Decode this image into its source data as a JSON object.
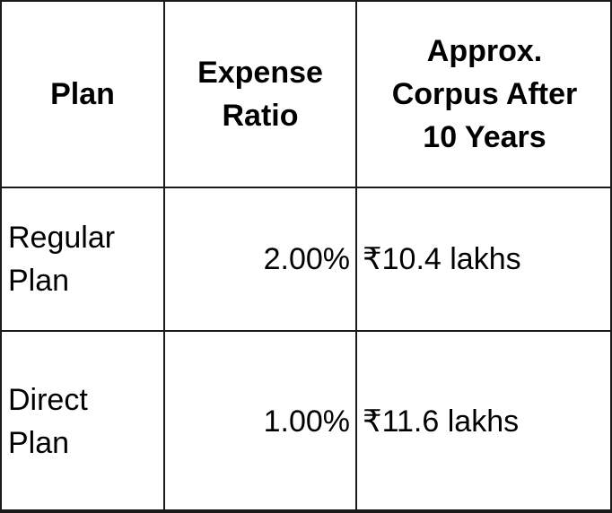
{
  "table": {
    "headers": {
      "plan": "Plan",
      "expense_ratio_line1": "Expense",
      "expense_ratio_line2": "Ratio",
      "corpus_line1": "Approx.",
      "corpus_line2": "Corpus After",
      "corpus_line3": "10 Years"
    },
    "rows": [
      {
        "plan_line1": "Regular",
        "plan_line2": "Plan",
        "expense_ratio": "2.00%",
        "corpus": "₹10.4 lakhs"
      },
      {
        "plan_line1": "Direct",
        "plan_line2": "Plan",
        "expense_ratio": "1.00%",
        "corpus": "₹11.6 lakhs"
      }
    ],
    "colors": {
      "border": "#1a1a1a",
      "text": "#000000",
      "background": "#ffffff"
    }
  }
}
